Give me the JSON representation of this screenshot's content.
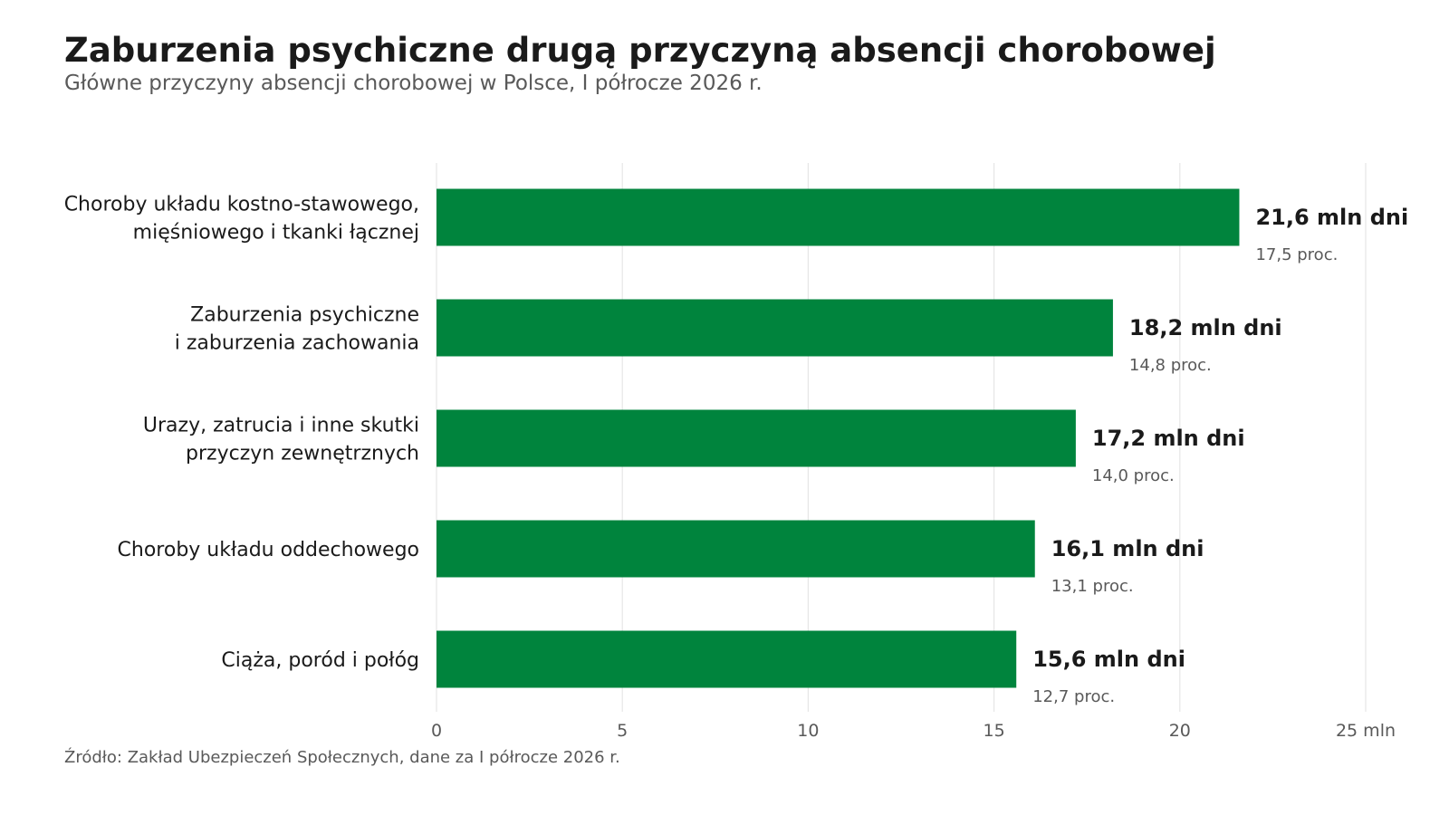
{
  "header": {
    "title": "Zaburzenia psychiczne drugą przyczyną absencji chorobowej",
    "subtitle": "Główne przyczyny absencji chorobowej w Polsce, I półrocze 2026 r."
  },
  "footer": {
    "source": "Źródło: Zakład Ubezpieczeń Społecznych, dane za I półrocze 2026 r."
  },
  "colors": {
    "bar": "#00843d",
    "grid": "#e6e6e6"
  },
  "chart_data": {
    "type": "bar",
    "orientation": "horizontal",
    "categories": [
      [
        "Choroby układu kostno-stawowego,",
        "mięśniowego i tkanki łącznej"
      ],
      [
        "Zaburzenia psychiczne",
        "i zaburzenia zachowania"
      ],
      [
        "Urazy, zatrucia i inne skutki",
        "przyczyn zewnętrznych"
      ],
      [
        "Choroby układu oddechowego"
      ],
      [
        "Ciąża, poród i połóg"
      ]
    ],
    "values": [
      21.6,
      18.2,
      17.2,
      16.1,
      15.6
    ],
    "value_labels": [
      "21,6 mln dni",
      "18,2 mln dni",
      "17,2 mln dni",
      "16,1 mln dni",
      "15,6 mln dni"
    ],
    "share_labels": [
      "17,5 proc.",
      "14,8 proc.",
      "14,0 proc.",
      "13,1 proc.",
      "12,7 proc."
    ],
    "xlim": [
      0,
      25
    ],
    "xticks": [
      0,
      5,
      10,
      15,
      20,
      25
    ],
    "xtick_labels": [
      "0",
      "5",
      "10",
      "15",
      "20",
      "25 mln"
    ],
    "grid": "vertical"
  }
}
